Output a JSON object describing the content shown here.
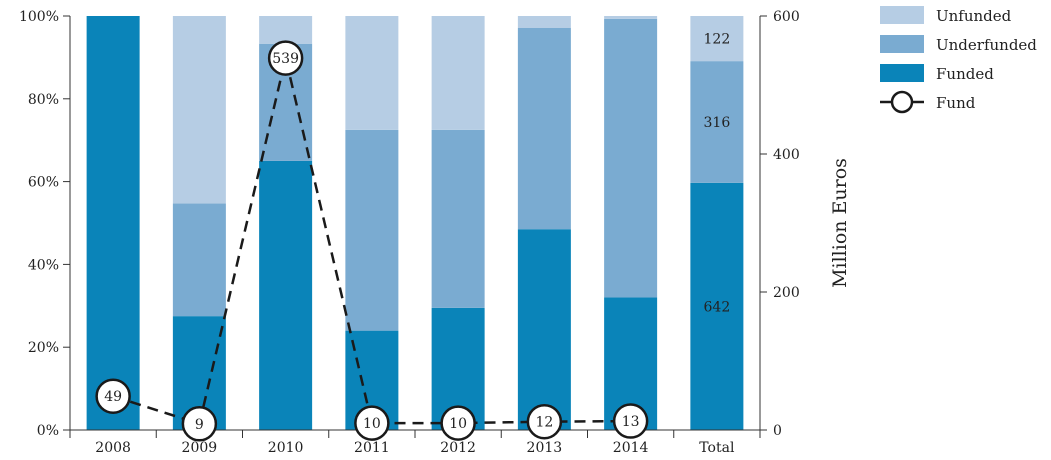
{
  "chart_data": {
    "type": "bar",
    "stacked": true,
    "categories": [
      "2008",
      "2009",
      "2010",
      "2011",
      "2012",
      "2013",
      "2014",
      "Total"
    ],
    "series": [
      {
        "name": "Funded",
        "color": "#0a84b9",
        "values": [
          100,
          27.5,
          65,
          24,
          29.5,
          48.5,
          32,
          59.7
        ]
      },
      {
        "name": "Underfunded",
        "color": "#7aabd1",
        "values": [
          0,
          27.2,
          28.3,
          48.5,
          43,
          48.6,
          67.3,
          29.4
        ]
      },
      {
        "name": "Unfunded",
        "color": "#b6cde4",
        "values": [
          0,
          45.3,
          6.7,
          27.5,
          27.5,
          2.9,
          0.7,
          10.9
        ]
      }
    ],
    "bar_labels": [
      {
        "category": "Total",
        "series": "Unfunded",
        "text": "122"
      },
      {
        "category": "Total",
        "series": "Underfunded",
        "text": "316"
      },
      {
        "category": "Total",
        "series": "Funded",
        "text": "642"
      }
    ],
    "line_series": {
      "name": "Fund",
      "axis": "right",
      "categories": [
        "2008",
        "2009",
        "2010",
        "2011",
        "2012",
        "2013",
        "2014"
      ],
      "values": [
        49,
        9,
        539,
        10,
        10,
        12,
        13
      ],
      "labels": [
        "49",
        "9",
        "539",
        "10",
        "10",
        "12",
        "13"
      ],
      "style": "dashed",
      "color": "#1a1a1a"
    },
    "y_left": {
      "range": [
        0,
        100
      ],
      "ticks": [
        0,
        20,
        40,
        60,
        80,
        100
      ],
      "tick_labels": [
        "0%",
        "20%",
        "40%",
        "60%",
        "80%",
        "100%"
      ]
    },
    "y_right": {
      "range": [
        0,
        600
      ],
      "ticks": [
        0,
        200,
        400,
        600
      ],
      "tick_labels": [
        "0",
        "200",
        "400",
        "600"
      ],
      "label": "Million Euros"
    },
    "legend": {
      "placement": "top-right",
      "entries": [
        {
          "label": "Unfunded",
          "kind": "box",
          "color": "#b6cde4"
        },
        {
          "label": "Underfunded",
          "kind": "box",
          "color": "#7aabd1"
        },
        {
          "label": "Funded",
          "kind": "box",
          "color": "#0a84b9"
        },
        {
          "label": "Fund",
          "kind": "line-marker",
          "color": "#1a1a1a"
        }
      ]
    },
    "grid": false
  }
}
